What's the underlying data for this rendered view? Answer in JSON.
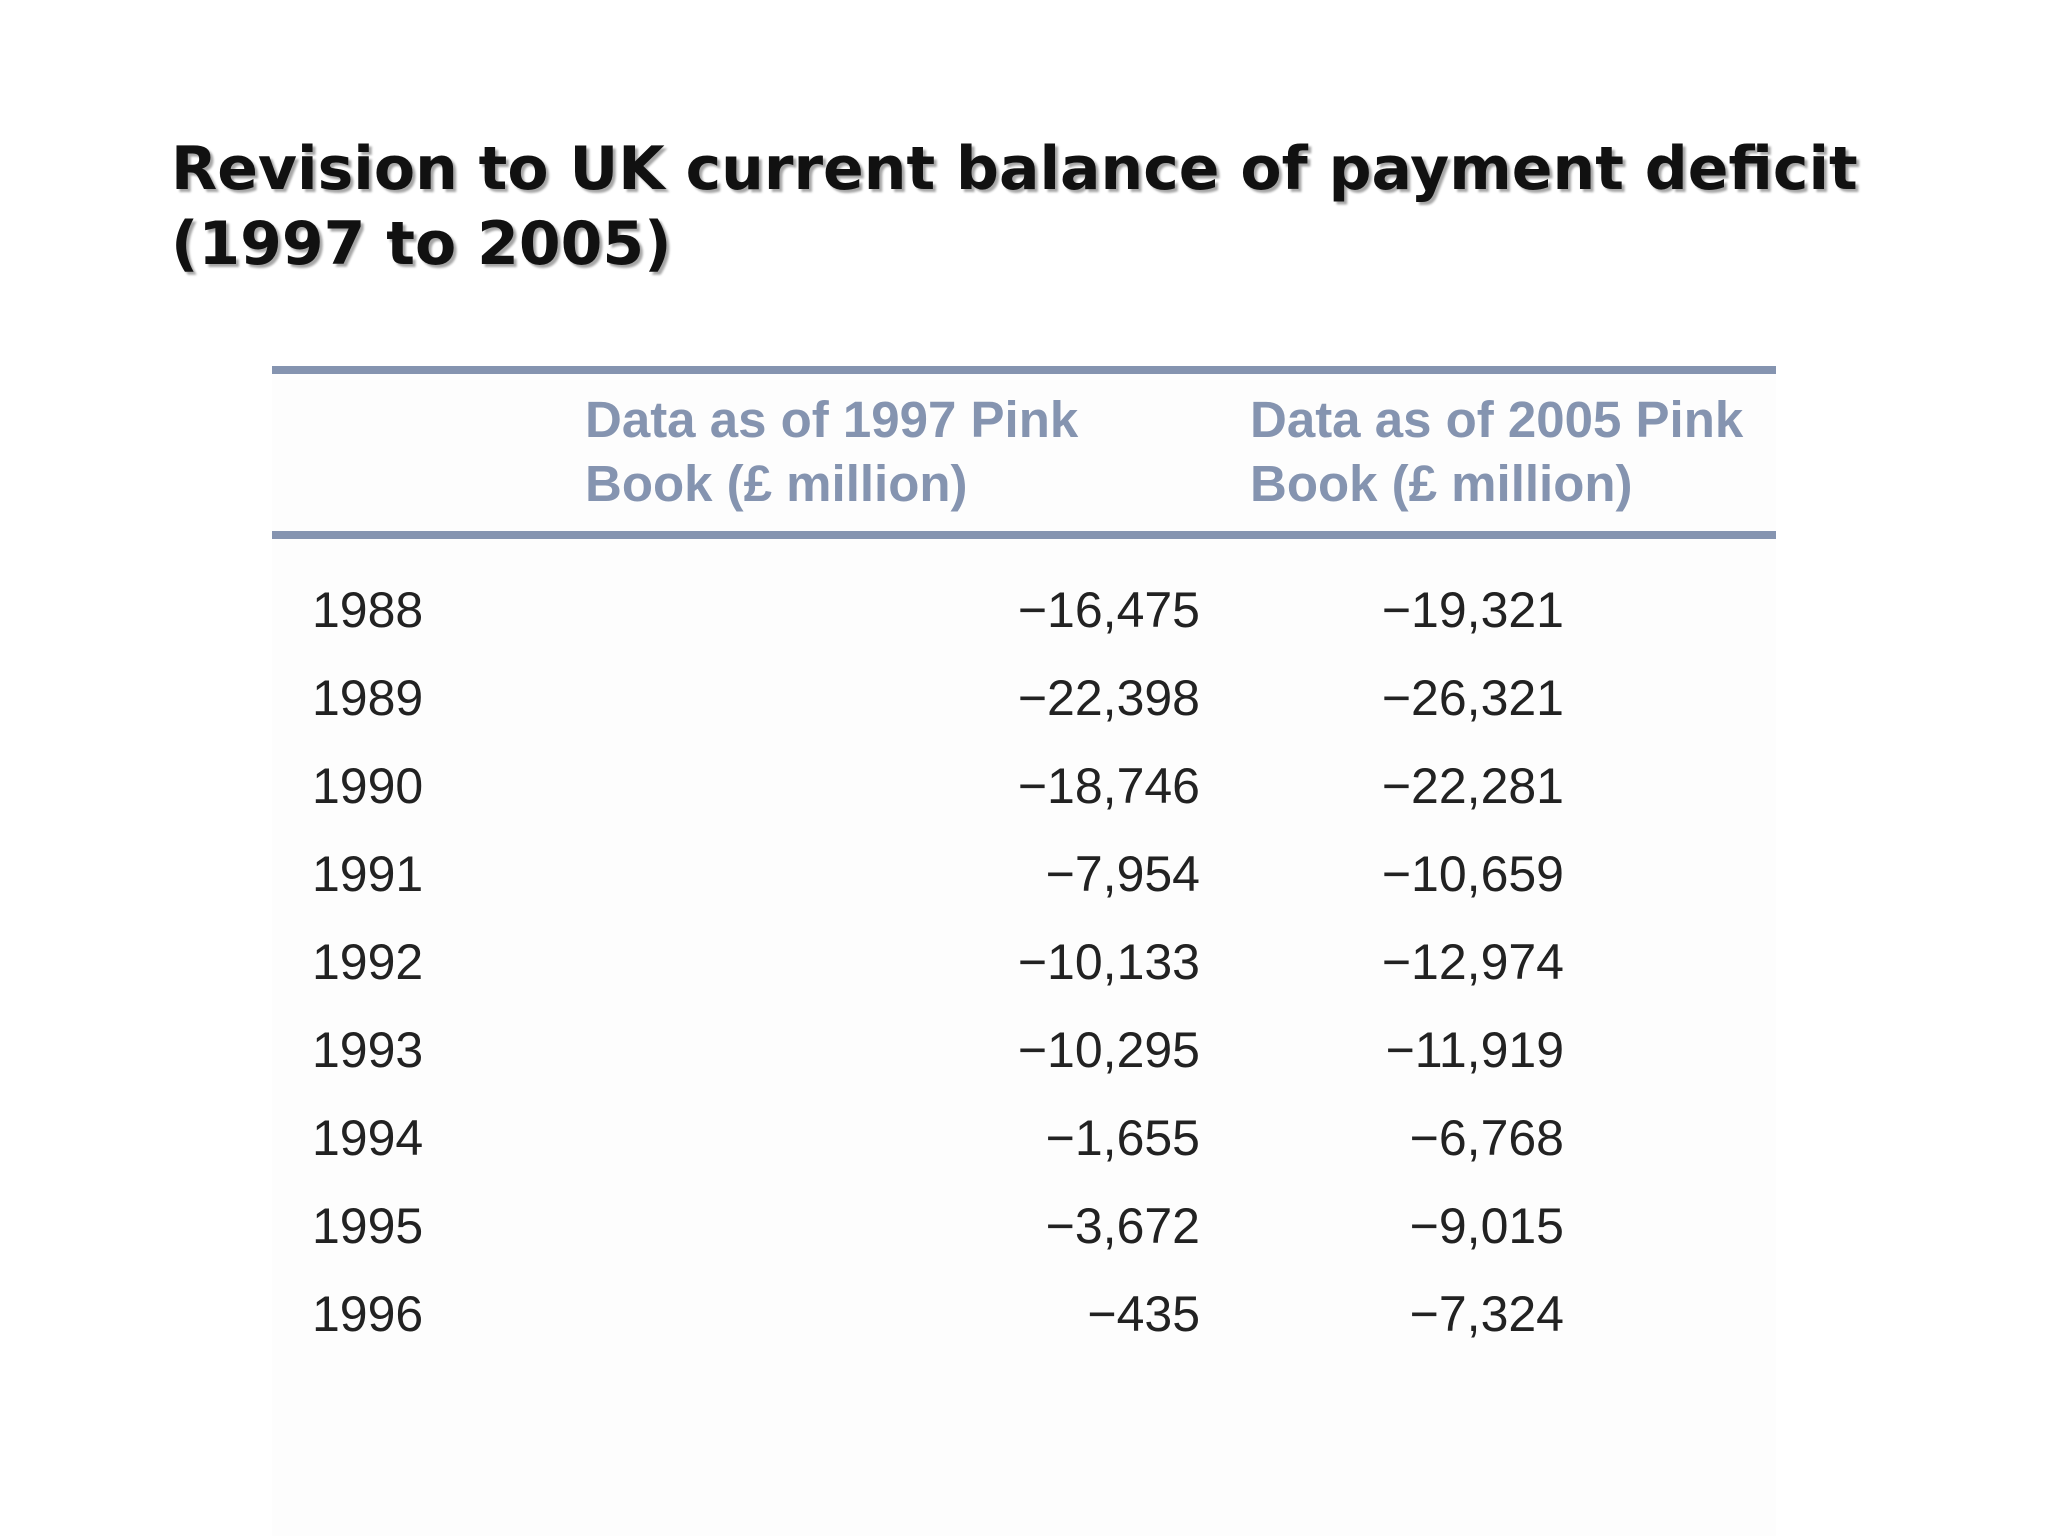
{
  "title": {
    "line1": "Revision to UK current balance of payment deficit",
    "line2": "(1997 to 2005)"
  },
  "table": {
    "headers": {
      "col1_line1": "Data as of 1997 Pink",
      "col1_line2": "Book (£ million)",
      "col2_line1": "Data as of 2005 Pink",
      "col2_line2": "Book (£ million)"
    },
    "rows": [
      {
        "year": "1988",
        "pink_1997": "−16,475",
        "pink_2005": "−19,321"
      },
      {
        "year": "1989",
        "pink_1997": "−22,398",
        "pink_2005": "−26,321"
      },
      {
        "year": "1990",
        "pink_1997": "−18,746",
        "pink_2005": "−22,281"
      },
      {
        "year": "1991",
        "pink_1997": "−7,954",
        "pink_2005": "−10,659"
      },
      {
        "year": "1992",
        "pink_1997": "−10,133",
        "pink_2005": "−12,974"
      },
      {
        "year": "1993",
        "pink_1997": "−10,295",
        "pink_2005": "−11,919"
      },
      {
        "year": "1994",
        "pink_1997": "−1,655",
        "pink_2005": "−6,768"
      },
      {
        "year": "1995",
        "pink_1997": "−3,672",
        "pink_2005": "−9,015"
      },
      {
        "year": "1996",
        "pink_1997": "−435",
        "pink_2005": "−7,324"
      }
    ]
  },
  "colors": {
    "header_accent": "#8594b0",
    "text": "#222222",
    "title": "#111111"
  }
}
